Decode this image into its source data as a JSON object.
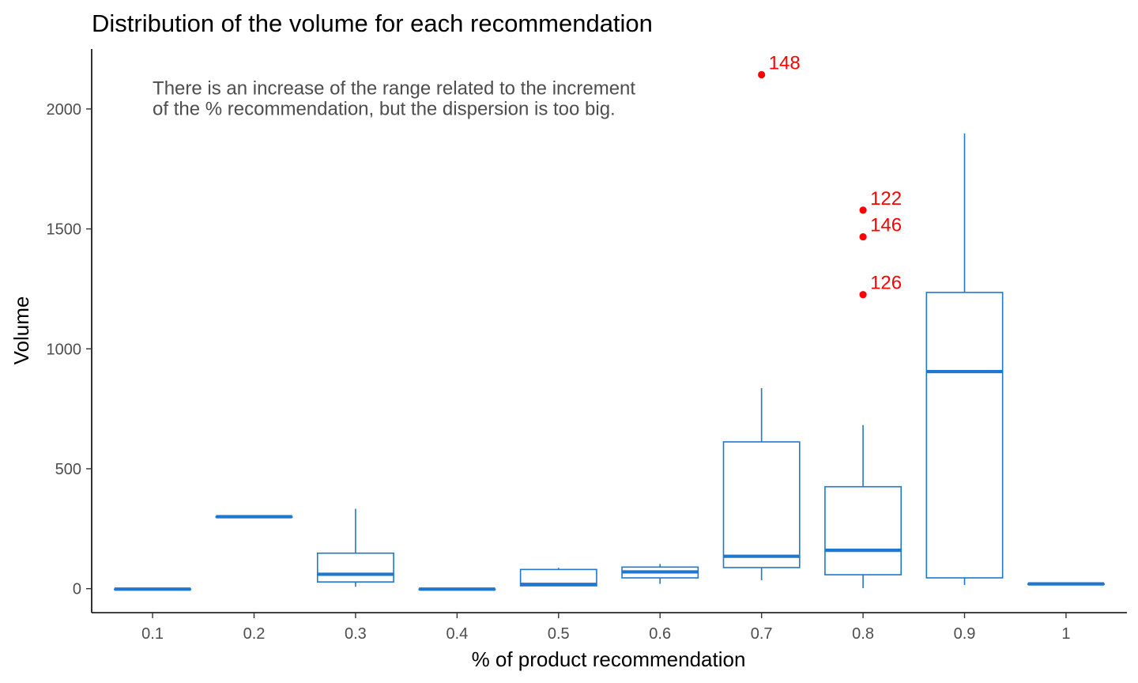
{
  "chart_data": {
    "type": "boxplot",
    "title": "Distribution of the volume for each recommendation",
    "xlabel": "% of product recommendation",
    "ylabel": "Volume",
    "ylim": [
      -100,
      2250
    ],
    "yticks": [
      0,
      500,
      1000,
      1500,
      2000
    ],
    "yticks_labels": [
      "0",
      "500",
      "1000",
      "1500",
      "2000"
    ],
    "categories": [
      "0.1",
      "0.2",
      "0.3",
      "0.4",
      "0.5",
      "0.6",
      "0.7",
      "0.8",
      "0.9",
      "1"
    ],
    "grid": false,
    "box_color": "#1f77d0",
    "outlier_color": "#ff0000",
    "annotation": {
      "lines": [
        "There is an increase of the range related to the increment",
        "of the % recommendation, but the dispersion is too big."
      ],
      "x_category": "0.1",
      "y": 2060
    },
    "boxes": [
      {
        "category": "0.1",
        "whisker_low": -2,
        "q1": -2,
        "median": -2,
        "q3": -2,
        "whisker_high": -2
      },
      {
        "category": "0.2",
        "whisker_low": 300,
        "q1": 300,
        "median": 300,
        "q3": 300,
        "whisker_high": 300
      },
      {
        "category": "0.3",
        "whisker_low": 8,
        "q1": 28,
        "median": 60,
        "q3": 148,
        "whisker_high": 333
      },
      {
        "category": "0.4",
        "whisker_low": -2,
        "q1": -2,
        "median": -2,
        "q3": -2,
        "whisker_high": -2
      },
      {
        "category": "0.5",
        "whisker_low": 10,
        "q1": 12,
        "median": 18,
        "q3": 80,
        "whisker_high": 87
      },
      {
        "category": "0.6",
        "whisker_low": 20,
        "q1": 45,
        "median": 70,
        "q3": 90,
        "whisker_high": 103
      },
      {
        "category": "0.7",
        "whisker_low": 35,
        "q1": 88,
        "median": 135,
        "q3": 612,
        "whisker_high": 836
      },
      {
        "category": "0.8",
        "whisker_low": 2,
        "q1": 58,
        "median": 160,
        "q3": 425,
        "whisker_high": 682
      },
      {
        "category": "0.9",
        "whisker_low": 15,
        "q1": 45,
        "median": 905,
        "q3": 1235,
        "whisker_high": 1898
      },
      {
        "category": "1",
        "whisker_low": 20,
        "q1": 20,
        "median": 20,
        "q3": 20,
        "whisker_high": 20
      }
    ],
    "outliers": [
      {
        "category": "0.7",
        "value": 2143,
        "label": "148"
      },
      {
        "category": "0.8",
        "value": 1578,
        "label": "122"
      },
      {
        "category": "0.8",
        "value": 1467,
        "label": "146"
      },
      {
        "category": "0.8",
        "value": 1226,
        "label": "126"
      }
    ]
  }
}
